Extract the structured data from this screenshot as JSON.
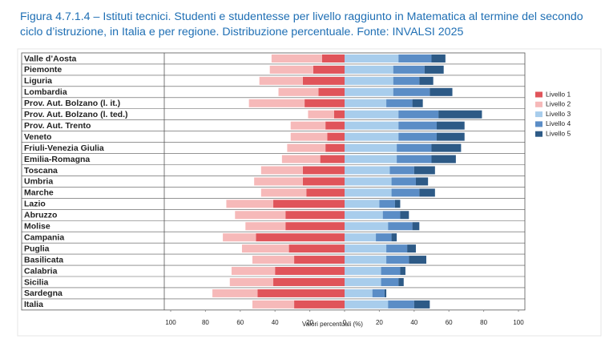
{
  "chart_data": {
    "type": "diverging_bar",
    "title": "Figura 4.7.1.4 – Istituti tecnici. Studenti e studentesse per livello raggiunto in Matematica al termine del secondo ciclo d’istruzione, in Italia e per regione. Distribuzione percentuale. Fonte: INVALSI 2025",
    "xlabel": "Valori percentuali (%)",
    "categories": [
      "Valle d’Aosta",
      "Piemonte",
      "Liguria",
      "Lombardia",
      "Prov. Aut. Bolzano (l. it.)",
      "Prov. Aut. Bolzano (l. ted.)",
      "Prov. Aut. Trento",
      "Veneto",
      "Friuli-Venezia Giulia",
      "Emilia-Romagna",
      "Toscana",
      "Umbria",
      "Marche",
      "Lazio",
      "Abruzzo",
      "Molise",
      "Campania",
      "Puglia",
      "Basilicata",
      "Calabria",
      "Sicilia",
      "Sardegna",
      "Italia"
    ],
    "series": [
      {
        "name": "Livello 1",
        "color": "#e0545a",
        "direction": "left",
        "values": [
          13,
          18,
          24,
          15,
          23,
          6,
          11,
          10,
          11,
          14,
          24,
          24,
          22,
          41,
          34,
          34,
          51,
          32,
          29,
          40,
          41,
          50,
          29
        ]
      },
      {
        "name": "Livello 2",
        "color": "#f6b9b9",
        "direction": "left",
        "values": [
          29,
          25,
          25,
          23,
          32,
          15,
          20,
          21,
          22,
          22,
          24,
          28,
          26,
          27,
          29,
          23,
          19,
          27,
          24,
          25,
          25,
          26,
          24
        ]
      },
      {
        "name": "Livello 3",
        "color": "#a8cdec",
        "direction": "right",
        "values": [
          31,
          28,
          28,
          28,
          24,
          31,
          31,
          31,
          30,
          30,
          26,
          27,
          27,
          20,
          22,
          25,
          18,
          24,
          24,
          21,
          21,
          16,
          25
        ]
      },
      {
        "name": "Livello 4",
        "color": "#5b8dc6",
        "direction": "right",
        "values": [
          19,
          18,
          15,
          21,
          15,
          23,
          22,
          22,
          20,
          20,
          14,
          14,
          16,
          9,
          10,
          14,
          9,
          12,
          13,
          11,
          10,
          7,
          15
        ]
      },
      {
        "name": "Livello 5",
        "color": "#2d5a86",
        "direction": "right",
        "values": [
          8,
          11,
          8,
          13,
          6,
          25,
          16,
          16,
          17,
          14,
          12,
          7,
          9,
          3,
          5,
          4,
          3,
          5,
          10,
          3,
          3,
          1,
          9
        ]
      }
    ],
    "xlim": [
      -100,
      100
    ],
    "xticks": [
      {
        "value": -100,
        "label": "100"
      },
      {
        "value": -80,
        "label": "80"
      },
      {
        "value": -60,
        "label": "60"
      },
      {
        "value": -40,
        "label": "40"
      },
      {
        "value": -20,
        "label": "20"
      },
      0,
      20,
      40,
      60,
      80,
      100
    ],
    "legend": "right"
  }
}
